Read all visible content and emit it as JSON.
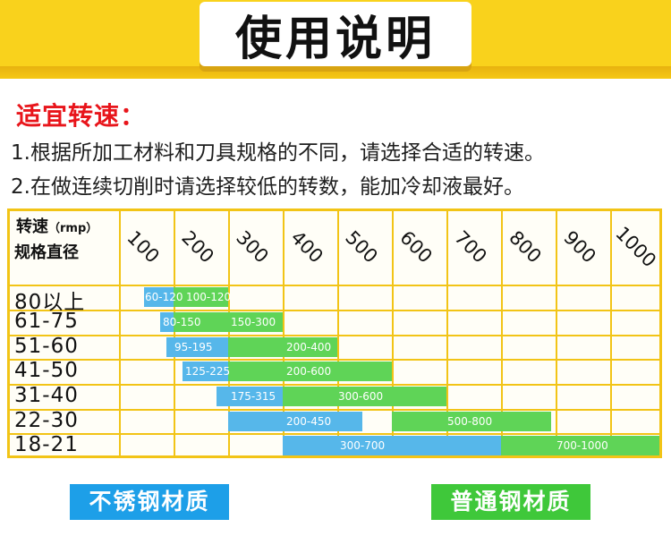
{
  "header": {
    "title": "使用说明"
  },
  "section": {
    "title": "适宜转速：",
    "lines": [
      "1.根据所加工材料和刀具规格的不同，请选择合适的转速。",
      "2.在做连续切削时请选择较低的转数，能加冷却液最好。"
    ]
  },
  "table": {
    "corner_top": "转速",
    "corner_unit": "（rmp）",
    "corner_bottom": "规格直径",
    "speeds": [
      "100",
      "200",
      "300",
      "400",
      "500",
      "600",
      "700",
      "800",
      "900",
      "1000"
    ],
    "rows": [
      {
        "diameter": "80以上",
        "ranges": [
          {
            "material": "stainless",
            "label": "60-120"
          },
          {
            "material": "steel",
            "label": "100-120"
          }
        ]
      },
      {
        "diameter": "61-75",
        "ranges": [
          {
            "material": "stainless",
            "label": "80-150"
          },
          {
            "material": "steel",
            "label": "150-300"
          }
        ]
      },
      {
        "diameter": "51-60",
        "ranges": [
          {
            "material": "stainless",
            "label": "95-195"
          },
          {
            "material": "steel",
            "label": "200-400"
          }
        ]
      },
      {
        "diameter": "41-50",
        "ranges": [
          {
            "material": "stainless",
            "label": "125-225"
          },
          {
            "material": "steel",
            "label": "200-600"
          }
        ]
      },
      {
        "diameter": "31-40",
        "ranges": [
          {
            "material": "stainless",
            "label": "175-315"
          },
          {
            "material": "steel",
            "label": "300-600"
          }
        ]
      },
      {
        "diameter": "22-30",
        "ranges": [
          {
            "material": "stainless",
            "label": "200-450"
          },
          {
            "material": "steel",
            "label": "500-800"
          }
        ]
      },
      {
        "diameter": "18-21",
        "ranges": [
          {
            "material": "stainless",
            "label": "300-700"
          },
          {
            "material": "steel",
            "label": "700-1000"
          }
        ]
      }
    ]
  },
  "legend": {
    "stainless": "不锈钢材质",
    "steel": "普通钢材质"
  },
  "colors": {
    "header_yellow": "#f9d21c",
    "grid_yellow": "#f2c416",
    "title_red": "#e8151b",
    "stainless_blue": "#56b7ea",
    "steel_green": "#5fd457"
  }
}
